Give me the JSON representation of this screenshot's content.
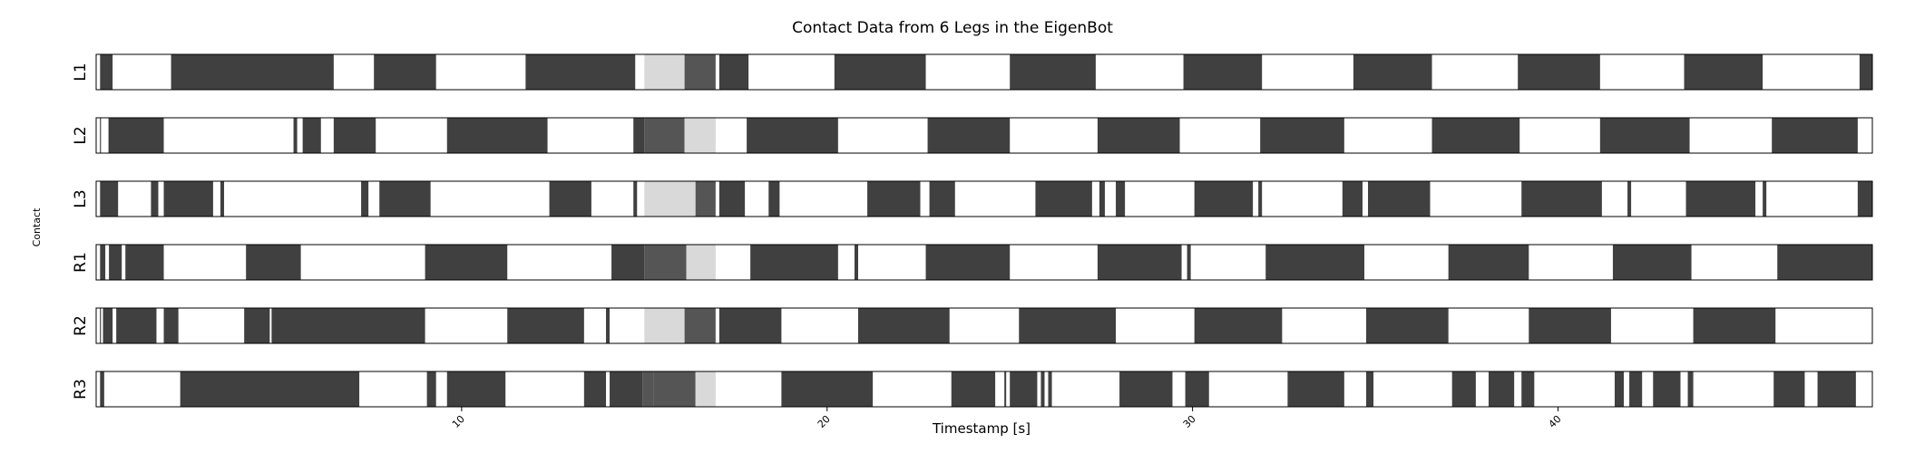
{
  "chart_data": {
    "type": "heatmap",
    "title": "Contact Data from 6 Legs in the EigenBot",
    "xlabel": "Timestamp [s]",
    "ylabel": "Contact",
    "xlim": [
      0,
      48.6
    ],
    "xticks": [
      10,
      20,
      30,
      40
    ],
    "grid": false,
    "legend": "none",
    "colors": {
      "contact": "#404040",
      "no_contact": "#ffffff",
      "light": "#d9d9d9",
      "mid": "#555555"
    },
    "rows": [
      {
        "label": "L1",
        "segments": [
          [
            0.0,
            0.12,
            "w"
          ],
          [
            0.12,
            0.45,
            "d"
          ],
          [
            2.05,
            6.5,
            "d"
          ],
          [
            7.6,
            9.3,
            "d"
          ],
          [
            11.75,
            14.75,
            "d"
          ],
          [
            15.0,
            16.1,
            "l"
          ],
          [
            16.1,
            16.95,
            "m"
          ],
          [
            17.05,
            17.85,
            "d"
          ],
          [
            20.2,
            22.7,
            "d"
          ],
          [
            25.0,
            27.35,
            "d"
          ],
          [
            29.75,
            31.9,
            "d"
          ],
          [
            34.4,
            36.55,
            "d"
          ],
          [
            38.9,
            41.15,
            "d"
          ],
          [
            43.45,
            45.6,
            "d"
          ],
          [
            48.25,
            48.6,
            "d"
          ]
        ]
      },
      {
        "label": "L2",
        "segments": [
          [
            0.0,
            0.12,
            "w"
          ],
          [
            0.12,
            0.35,
            "w"
          ],
          [
            0.35,
            1.85,
            "d"
          ],
          [
            5.4,
            5.5,
            "d"
          ],
          [
            5.65,
            6.15,
            "d"
          ],
          [
            6.5,
            7.65,
            "d"
          ],
          [
            9.6,
            12.35,
            "d"
          ],
          [
            14.7,
            15.0,
            "d"
          ],
          [
            15.0,
            16.1,
            "m"
          ],
          [
            16.1,
            16.95,
            "l"
          ],
          [
            17.8,
            20.3,
            "d"
          ],
          [
            22.75,
            25.0,
            "d"
          ],
          [
            27.4,
            29.65,
            "d"
          ],
          [
            31.85,
            34.15,
            "d"
          ],
          [
            36.55,
            38.95,
            "d"
          ],
          [
            41.15,
            43.6,
            "d"
          ],
          [
            45.85,
            48.2,
            "d"
          ]
        ]
      },
      {
        "label": "L3",
        "segments": [
          [
            0.0,
            0.12,
            "w"
          ],
          [
            0.12,
            0.6,
            "d"
          ],
          [
            1.5,
            1.7,
            "d"
          ],
          [
            1.85,
            3.2,
            "d"
          ],
          [
            3.4,
            3.5,
            "d"
          ],
          [
            7.25,
            7.45,
            "d"
          ],
          [
            7.75,
            9.15,
            "d"
          ],
          [
            12.4,
            13.55,
            "d"
          ],
          [
            14.7,
            14.8,
            "d"
          ],
          [
            15.0,
            16.4,
            "l"
          ],
          [
            16.4,
            16.95,
            "m"
          ],
          [
            17.05,
            17.75,
            "d"
          ],
          [
            18.4,
            18.7,
            "d"
          ],
          [
            21.1,
            22.55,
            "d"
          ],
          [
            22.8,
            23.5,
            "d"
          ],
          [
            25.7,
            27.25,
            "d"
          ],
          [
            27.45,
            27.6,
            "d"
          ],
          [
            27.9,
            28.15,
            "d"
          ],
          [
            30.05,
            31.65,
            "d"
          ],
          [
            31.8,
            31.9,
            "d"
          ],
          [
            34.1,
            34.65,
            "d"
          ],
          [
            34.8,
            36.5,
            "d"
          ],
          [
            39.0,
            41.2,
            "d"
          ],
          [
            41.9,
            42.0,
            "d"
          ],
          [
            43.5,
            45.4,
            "d"
          ],
          [
            45.6,
            45.7,
            "d"
          ],
          [
            48.2,
            48.6,
            "d"
          ]
        ]
      },
      {
        "label": "R1",
        "segments": [
          [
            0.0,
            0.12,
            "w"
          ],
          [
            0.12,
            0.25,
            "d"
          ],
          [
            0.35,
            0.7,
            "d"
          ],
          [
            0.8,
            1.85,
            "d"
          ],
          [
            4.1,
            5.6,
            "d"
          ],
          [
            9.0,
            11.25,
            "d"
          ],
          [
            14.1,
            15.0,
            "d"
          ],
          [
            15.0,
            16.15,
            "m"
          ],
          [
            16.15,
            16.95,
            "l"
          ],
          [
            17.9,
            20.3,
            "d"
          ],
          [
            20.75,
            20.85,
            "d"
          ],
          [
            22.7,
            25.0,
            "d"
          ],
          [
            27.4,
            29.7,
            "d"
          ],
          [
            29.85,
            29.95,
            "d"
          ],
          [
            32.0,
            34.7,
            "d"
          ],
          [
            37.0,
            39.2,
            "d"
          ],
          [
            41.5,
            43.65,
            "d"
          ],
          [
            46.0,
            48.6,
            "d"
          ]
        ]
      },
      {
        "label": "R2",
        "segments": [
          [
            0.0,
            0.12,
            "w"
          ],
          [
            0.12,
            0.2,
            "w"
          ],
          [
            0.2,
            0.45,
            "d"
          ],
          [
            0.55,
            1.65,
            "d"
          ],
          [
            1.85,
            2.25,
            "d"
          ],
          [
            4.05,
            4.75,
            "d"
          ],
          [
            4.8,
            9.0,
            "d"
          ],
          [
            11.25,
            13.35,
            "d"
          ],
          [
            13.95,
            14.05,
            "d"
          ],
          [
            15.0,
            16.1,
            "l"
          ],
          [
            16.1,
            16.95,
            "m"
          ],
          [
            17.05,
            18.75,
            "d"
          ],
          [
            20.85,
            23.35,
            "d"
          ],
          [
            25.25,
            27.9,
            "d"
          ],
          [
            30.05,
            32.45,
            "d"
          ],
          [
            34.75,
            37.0,
            "d"
          ],
          [
            39.2,
            41.45,
            "d"
          ],
          [
            43.7,
            45.95,
            "d"
          ]
        ]
      },
      {
        "label": "R3",
        "segments": [
          [
            0.0,
            0.12,
            "w"
          ],
          [
            0.12,
            0.22,
            "d"
          ],
          [
            2.3,
            7.2,
            "d"
          ],
          [
            9.05,
            9.3,
            "d"
          ],
          [
            9.6,
            11.2,
            "d"
          ],
          [
            13.35,
            13.95,
            "d"
          ],
          [
            14.05,
            14.95,
            "d"
          ],
          [
            14.95,
            15.25,
            "m"
          ],
          [
            15.25,
            16.4,
            "m"
          ],
          [
            16.4,
            16.95,
            "l"
          ],
          [
            18.75,
            21.25,
            "d"
          ],
          [
            23.4,
            24.6,
            "d"
          ],
          [
            24.85,
            24.9,
            "d"
          ],
          [
            25.0,
            25.75,
            "d"
          ],
          [
            25.85,
            25.95,
            "d"
          ],
          [
            26.05,
            26.15,
            "d"
          ],
          [
            28.0,
            29.45,
            "d"
          ],
          [
            29.8,
            30.45,
            "d"
          ],
          [
            32.6,
            34.15,
            "d"
          ],
          [
            34.75,
            34.95,
            "d"
          ],
          [
            37.1,
            37.75,
            "d"
          ],
          [
            38.1,
            38.8,
            "d"
          ],
          [
            39.0,
            39.35,
            "d"
          ],
          [
            41.55,
            41.8,
            "d"
          ],
          [
            41.95,
            42.3,
            "d"
          ],
          [
            42.6,
            43.35,
            "d"
          ],
          [
            43.55,
            43.7,
            "d"
          ],
          [
            45.9,
            46.75,
            "d"
          ],
          [
            47.1,
            48.15,
            "d"
          ]
        ]
      }
    ]
  }
}
